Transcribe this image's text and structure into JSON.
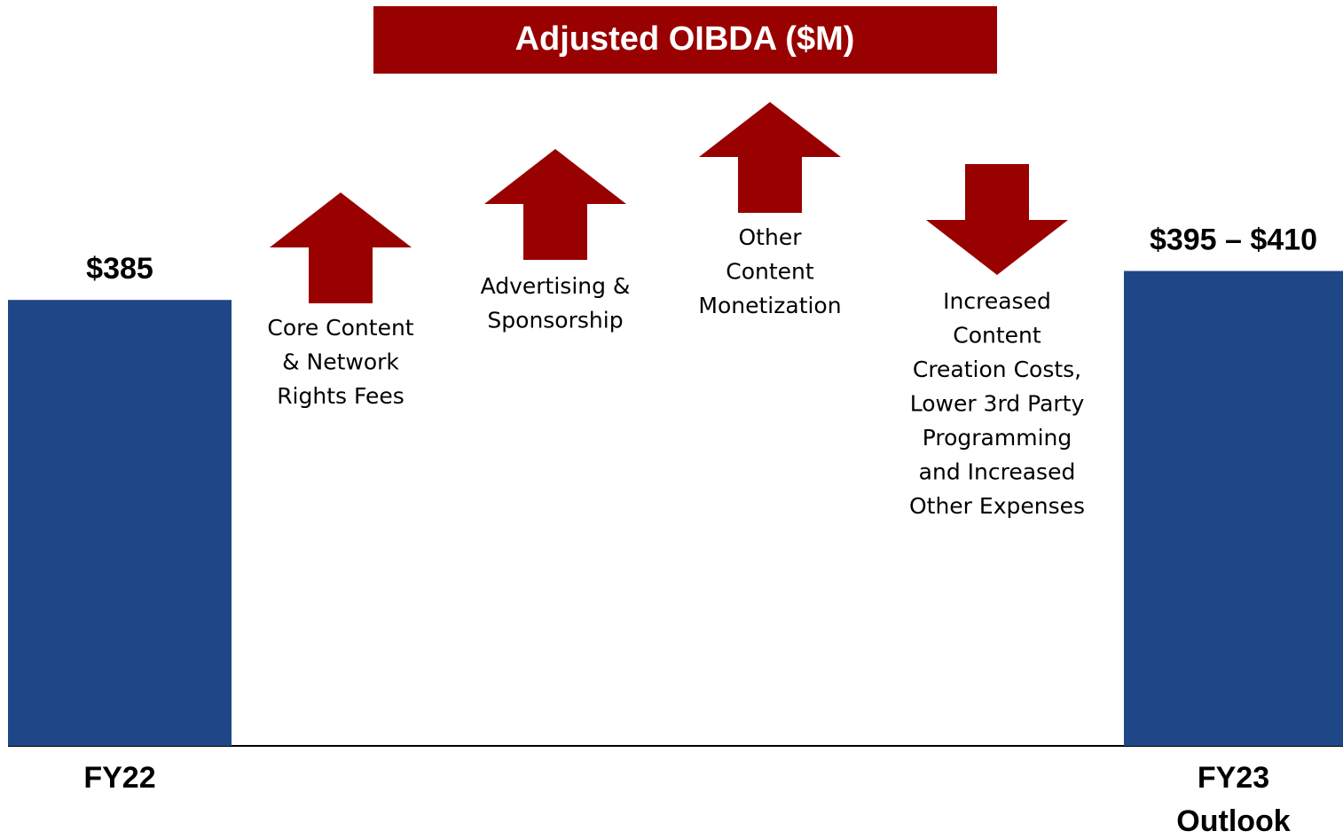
{
  "chart_data": {
    "type": "bar",
    "title": "Adjusted OIBDA ($M)",
    "categories": [
      "FY22",
      "FY23 Outlook"
    ],
    "values": [
      385,
      410
    ],
    "range_low": [
      null,
      395
    ],
    "value_labels": [
      "$385",
      "$395 – $410"
    ],
    "color": "#1f4788",
    "drivers": [
      {
        "lines": [
          "Core Content",
          "& Network",
          "Rights Fees"
        ],
        "direction": "up"
      },
      {
        "lines": [
          "Advertising &",
          "Sponsorship"
        ],
        "direction": "up"
      },
      {
        "lines": [
          "Other",
          "Content",
          "Monetization"
        ],
        "direction": "up"
      },
      {
        "lines": [
          "Increased",
          "Content",
          "Creation Costs,",
          "Lower 3rd Party",
          "Programming",
          "and Increased",
          "Other Expenses"
        ],
        "direction": "down"
      }
    ],
    "driver_color": "#990000"
  }
}
